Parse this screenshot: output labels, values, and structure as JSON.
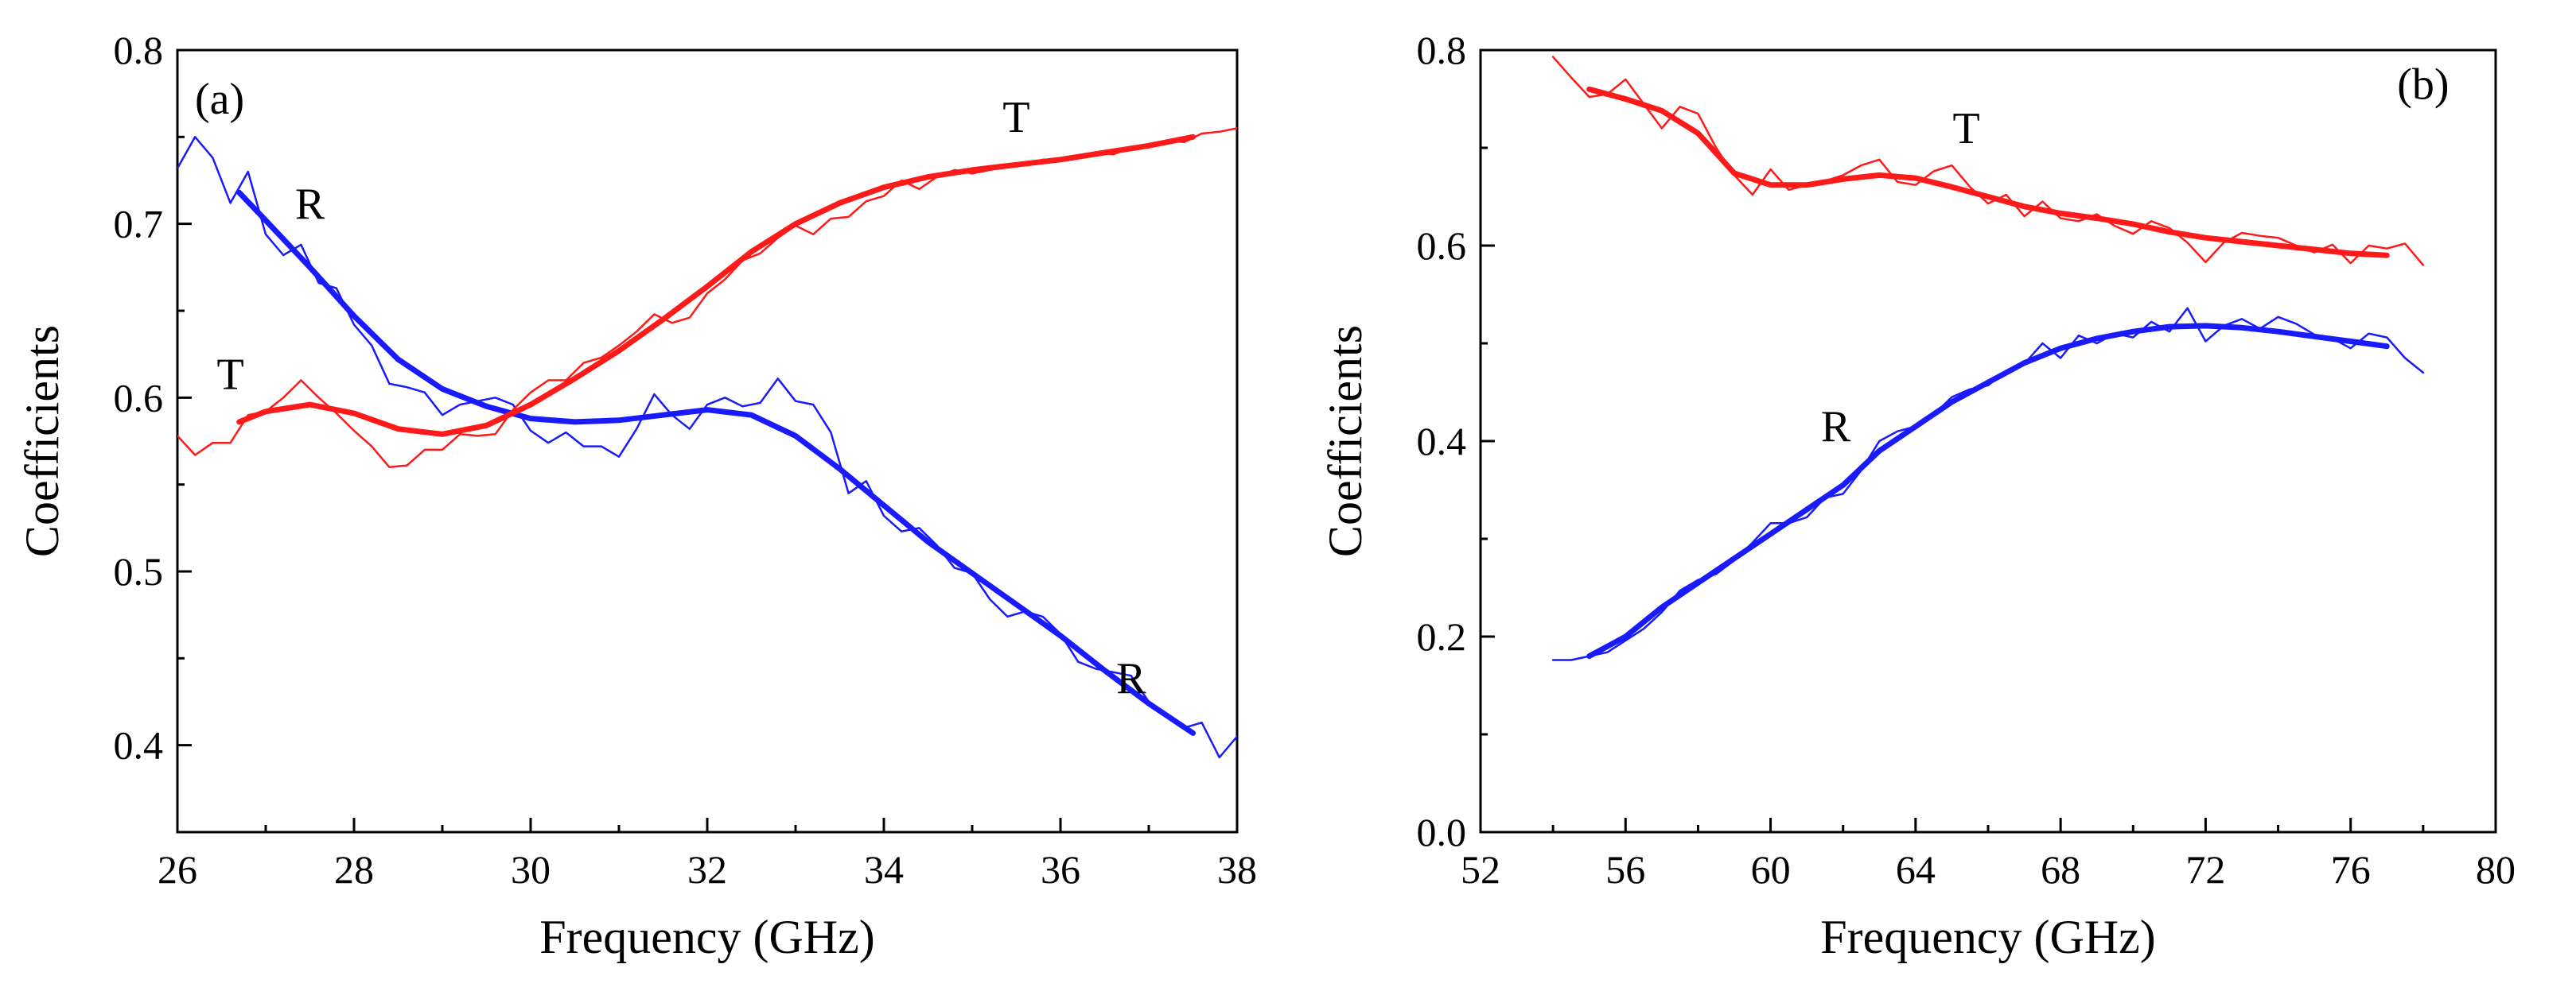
{
  "figure": {
    "panels": [
      "(a)",
      "(b)"
    ]
  },
  "colors": {
    "reflection": "#1a1aff",
    "transmission": "#ff1a1a",
    "axis": "#000000"
  },
  "chart_data": [
    {
      "type": "line",
      "panel_label": "(a)",
      "xlabel": "Frequency (GHz)",
      "ylabel": "Coefficients",
      "xlim": [
        26,
        38
      ],
      "ylim": [
        0.35,
        0.8
      ],
      "xticks": [
        26,
        28,
        30,
        32,
        34,
        36,
        38
      ],
      "xtick_labels": [
        "26",
        "28",
        "30",
        "32",
        "34",
        "36",
        "38"
      ],
      "yticks": [
        0.4,
        0.5,
        0.6,
        0.7,
        0.8
      ],
      "ytick_labels": [
        "0.4",
        "0.5",
        "0.6",
        "0.7",
        "0.8"
      ],
      "curve_labels": [
        {
          "text": "R",
          "x": 27.5,
          "y": 0.703,
          "color": "#000000"
        },
        {
          "text": "T",
          "x": 26.6,
          "y": 0.605,
          "color": "#000000"
        },
        {
          "text": "T",
          "x": 35.5,
          "y": 0.753,
          "color": "#000000"
        },
        {
          "text": "R",
          "x": 36.8,
          "y": 0.43,
          "color": "#000000"
        }
      ],
      "series": [
        {
          "label": "R",
          "color": "#1a1aff",
          "style": "measured",
          "x": [
            26.0,
            26.2,
            26.4,
            26.6,
            26.8,
            27.0,
            27.2,
            27.4,
            27.6,
            27.8,
            28.0,
            28.2,
            28.4,
            28.6,
            28.8,
            29.0,
            29.2,
            29.4,
            29.6,
            29.8,
            30.0,
            30.2,
            30.4,
            30.6,
            30.8,
            31.0,
            31.2,
            31.4,
            31.6,
            31.8,
            32.0,
            32.2,
            32.4,
            32.6,
            32.8,
            33.0,
            33.2,
            33.4,
            33.6,
            33.8,
            34.0,
            34.2,
            34.4,
            34.6,
            34.8,
            35.0,
            35.2,
            35.4,
            35.6,
            35.8,
            36.0,
            36.2,
            36.4,
            36.6,
            36.8,
            37.0,
            37.2,
            37.4,
            37.6,
            37.8,
            38.0
          ],
          "y": [
            0.732,
            0.75,
            0.738,
            0.712,
            0.73,
            0.694,
            0.682,
            0.688,
            0.666,
            0.663,
            0.642,
            0.63,
            0.608,
            0.606,
            0.603,
            0.59,
            0.596,
            0.598,
            0.6,
            0.596,
            0.581,
            0.574,
            0.58,
            0.572,
            0.572,
            0.566,
            0.582,
            0.602,
            0.59,
            0.582,
            0.596,
            0.6,
            0.595,
            0.597,
            0.611,
            0.598,
            0.596,
            0.58,
            0.545,
            0.552,
            0.532,
            0.523,
            0.525,
            0.515,
            0.502,
            0.499,
            0.484,
            0.474,
            0.477,
            0.474,
            0.464,
            0.448,
            0.444,
            0.442,
            0.44,
            0.425,
            0.417,
            0.41,
            0.413,
            0.393,
            0.405
          ]
        },
        {
          "label": "R",
          "color": "#1a1aff",
          "style": "fit",
          "x": [
            26.7,
            27.0,
            27.5,
            28.0,
            28.5,
            29.0,
            29.5,
            30.0,
            30.5,
            31.0,
            31.5,
            32.0,
            32.5,
            33.0,
            33.5,
            34.0,
            34.5,
            35.0,
            35.5,
            36.0,
            36.5,
            37.0,
            37.5
          ],
          "y": [
            0.718,
            0.702,
            0.675,
            0.647,
            0.622,
            0.605,
            0.595,
            0.588,
            0.586,
            0.587,
            0.59,
            0.593,
            0.59,
            0.578,
            0.559,
            0.538,
            0.517,
            0.499,
            0.481,
            0.463,
            0.443,
            0.424,
            0.407
          ]
        },
        {
          "label": "T",
          "color": "#ff1a1a",
          "style": "measured",
          "x": [
            26.0,
            26.2,
            26.4,
            26.6,
            26.8,
            27.0,
            27.2,
            27.4,
            27.6,
            27.8,
            28.0,
            28.2,
            28.4,
            28.6,
            28.8,
            29.0,
            29.2,
            29.4,
            29.6,
            29.8,
            30.0,
            30.2,
            30.4,
            30.6,
            30.8,
            31.0,
            31.2,
            31.4,
            31.6,
            31.8,
            32.0,
            32.2,
            32.4,
            32.6,
            32.8,
            33.0,
            33.2,
            33.4,
            33.6,
            33.8,
            34.0,
            34.2,
            34.4,
            34.6,
            34.8,
            35.0,
            35.2,
            35.4,
            35.6,
            35.8,
            36.0,
            36.2,
            36.4,
            36.6,
            36.8,
            37.0,
            37.2,
            37.4,
            37.6,
            37.8,
            38.0
          ],
          "y": [
            0.578,
            0.567,
            0.574,
            0.574,
            0.59,
            0.592,
            0.6,
            0.61,
            0.6,
            0.591,
            0.581,
            0.572,
            0.56,
            0.561,
            0.57,
            0.57,
            0.579,
            0.578,
            0.579,
            0.593,
            0.603,
            0.61,
            0.61,
            0.62,
            0.623,
            0.63,
            0.638,
            0.648,
            0.643,
            0.646,
            0.66,
            0.668,
            0.679,
            0.683,
            0.692,
            0.699,
            0.694,
            0.703,
            0.704,
            0.713,
            0.716,
            0.725,
            0.72,
            0.727,
            0.731,
            0.729,
            0.731,
            0.733,
            0.734,
            0.737,
            0.737,
            0.739,
            0.741,
            0.74,
            0.744,
            0.744,
            0.748,
            0.747,
            0.752,
            0.753,
            0.755
          ]
        },
        {
          "label": "T",
          "color": "#ff1a1a",
          "style": "fit",
          "x": [
            26.7,
            27.0,
            27.5,
            28.0,
            28.5,
            29.0,
            29.5,
            30.0,
            30.5,
            31.0,
            31.5,
            32.0,
            32.5,
            33.0,
            33.5,
            34.0,
            34.5,
            35.0,
            35.5,
            36.0,
            36.5,
            37.0,
            37.5
          ],
          "y": [
            0.586,
            0.592,
            0.596,
            0.591,
            0.582,
            0.579,
            0.584,
            0.596,
            0.611,
            0.627,
            0.645,
            0.664,
            0.684,
            0.7,
            0.712,
            0.721,
            0.727,
            0.731,
            0.734,
            0.737,
            0.741,
            0.745,
            0.75
          ]
        }
      ]
    },
    {
      "type": "line",
      "panel_label": "(b)",
      "xlabel": "Frequency (GHz)",
      "ylabel": "Coefficients",
      "xlim": [
        52,
        80
      ],
      "ylim": [
        0.0,
        0.8
      ],
      "xticks": [
        52,
        56,
        60,
        64,
        68,
        72,
        76,
        80
      ],
      "xtick_labels": [
        "52",
        "56",
        "60",
        "64",
        "68",
        "72",
        "76",
        "80"
      ],
      "yticks": [
        0.0,
        0.2,
        0.4,
        0.6,
        0.8
      ],
      "ytick_labels": [
        "0.0",
        "0.2",
        "0.4",
        "0.6",
        "0.8"
      ],
      "curve_labels": [
        {
          "text": "T",
          "x": 65.4,
          "y": 0.705,
          "color": "#000000"
        },
        {
          "text": "R",
          "x": 61.8,
          "y": 0.4,
          "color": "#000000"
        },
        {
          "text": "(b)",
          "x": 78.0,
          "y": 0.75,
          "color": "#000000"
        }
      ],
      "series": [
        {
          "label": "T",
          "color": "#ff1a1a",
          "style": "measured",
          "x": [
            54.0,
            54.5,
            55.0,
            55.5,
            56.0,
            56.5,
            57.0,
            57.5,
            58.0,
            58.5,
            59.0,
            59.5,
            60.0,
            60.5,
            61.0,
            61.5,
            62.0,
            62.5,
            63.0,
            63.5,
            64.0,
            64.5,
            65.0,
            65.5,
            66.0,
            66.5,
            67.0,
            67.5,
            68.0,
            68.5,
            69.0,
            69.5,
            70.0,
            70.5,
            71.0,
            71.5,
            72.0,
            72.5,
            73.0,
            73.5,
            74.0,
            74.5,
            75.0,
            75.5,
            76.0,
            76.5,
            77.0,
            77.5,
            78.0
          ],
          "y": [
            0.793,
            0.772,
            0.752,
            0.755,
            0.77,
            0.745,
            0.72,
            0.742,
            0.735,
            0.7,
            0.672,
            0.652,
            0.678,
            0.657,
            0.662,
            0.666,
            0.672,
            0.682,
            0.688,
            0.665,
            0.662,
            0.676,
            0.682,
            0.66,
            0.643,
            0.652,
            0.63,
            0.645,
            0.628,
            0.625,
            0.632,
            0.62,
            0.612,
            0.625,
            0.618,
            0.603,
            0.583,
            0.603,
            0.613,
            0.61,
            0.608,
            0.6,
            0.593,
            0.601,
            0.582,
            0.6,
            0.597,
            0.602,
            0.58
          ]
        },
        {
          "label": "T",
          "color": "#ff1a1a",
          "style": "fit",
          "x": [
            55,
            56,
            57,
            58,
            59,
            60,
            61,
            62,
            63,
            64,
            65,
            66,
            67,
            68,
            69,
            70,
            71,
            72,
            73,
            74,
            75,
            76,
            77
          ],
          "y": [
            0.76,
            0.75,
            0.738,
            0.715,
            0.674,
            0.662,
            0.662,
            0.668,
            0.672,
            0.669,
            0.66,
            0.65,
            0.64,
            0.633,
            0.628,
            0.622,
            0.614,
            0.608,
            0.604,
            0.6,
            0.596,
            0.592,
            0.59
          ]
        },
        {
          "label": "R",
          "color": "#1a1aff",
          "style": "measured",
          "x": [
            54.0,
            54.5,
            55.0,
            55.5,
            56.0,
            56.5,
            57.0,
            57.5,
            58.0,
            58.5,
            59.0,
            59.5,
            60.0,
            60.5,
            61.0,
            61.5,
            62.0,
            62.5,
            63.0,
            63.5,
            64.0,
            64.5,
            65.0,
            65.5,
            66.0,
            66.5,
            67.0,
            67.5,
            68.0,
            68.5,
            69.0,
            69.5,
            70.0,
            70.5,
            71.0,
            71.5,
            72.0,
            72.5,
            73.0,
            73.5,
            74.0,
            74.5,
            75.0,
            75.5,
            76.0,
            76.5,
            77.0,
            77.5,
            78.0
          ],
          "y": [
            0.176,
            0.176,
            0.18,
            0.184,
            0.196,
            0.208,
            0.225,
            0.247,
            0.258,
            0.264,
            0.278,
            0.296,
            0.316,
            0.316,
            0.322,
            0.342,
            0.346,
            0.37,
            0.4,
            0.41,
            0.415,
            0.427,
            0.445,
            0.453,
            0.457,
            0.472,
            0.479,
            0.5,
            0.485,
            0.508,
            0.5,
            0.51,
            0.506,
            0.522,
            0.512,
            0.536,
            0.502,
            0.518,
            0.525,
            0.515,
            0.527,
            0.52,
            0.509,
            0.505,
            0.495,
            0.51,
            0.506,
            0.485,
            0.47
          ]
        },
        {
          "label": "R",
          "color": "#1a1aff",
          "style": "fit",
          "x": [
            55,
            56,
            57,
            58,
            59,
            60,
            61,
            62,
            63,
            64,
            65,
            66,
            67,
            68,
            69,
            70,
            71,
            72,
            73,
            74,
            75,
            76,
            77
          ],
          "y": [
            0.18,
            0.2,
            0.23,
            0.255,
            0.28,
            0.305,
            0.33,
            0.355,
            0.39,
            0.415,
            0.44,
            0.46,
            0.48,
            0.495,
            0.505,
            0.512,
            0.517,
            0.518,
            0.516,
            0.512,
            0.507,
            0.502,
            0.497
          ]
        }
      ]
    }
  ]
}
